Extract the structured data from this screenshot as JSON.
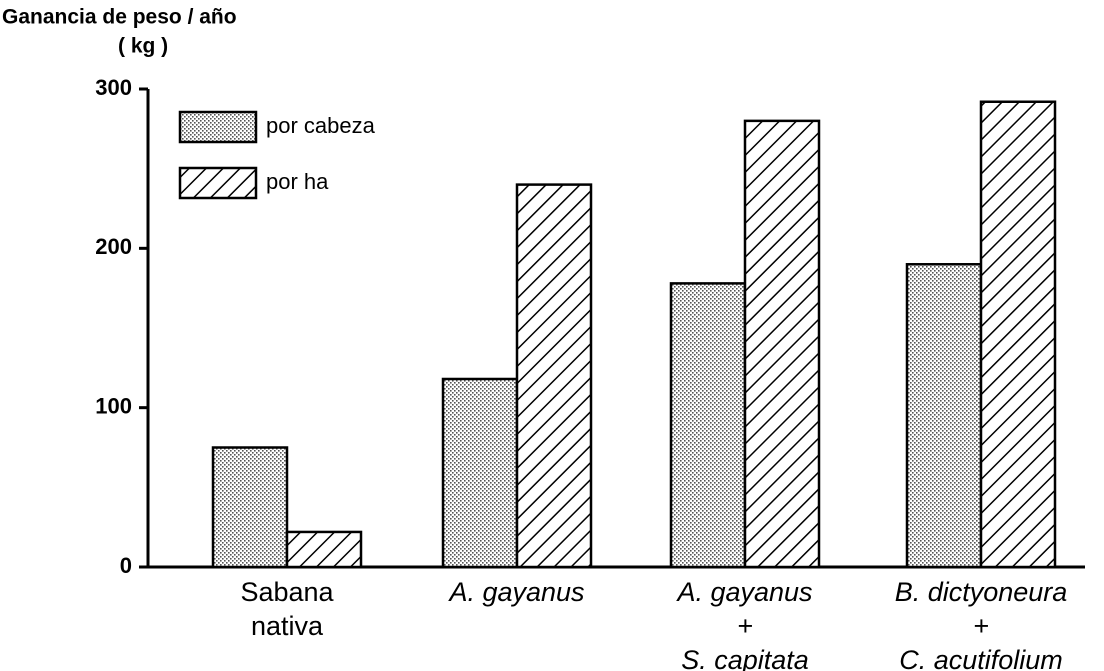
{
  "chart_data": {
    "type": "bar",
    "ylabel": [
      "Ganancia de peso / año",
      "( kg )"
    ],
    "categories": [
      [
        "Sabana",
        "nativa"
      ],
      [
        "A. gayanus"
      ],
      [
        "A. gayanus",
        "+",
        "S. capitata"
      ],
      [
        "B. dictyoneura",
        "+",
        "C. acutifolium"
      ]
    ],
    "series": [
      {
        "name": "por cabeza",
        "values": [
          75,
          118,
          178,
          190
        ]
      },
      {
        "name": "por ha",
        "values": [
          22,
          240,
          280,
          292
        ]
      }
    ],
    "ylim": [
      0,
      300
    ],
    "yticks": [
      0,
      100,
      200,
      300
    ]
  }
}
